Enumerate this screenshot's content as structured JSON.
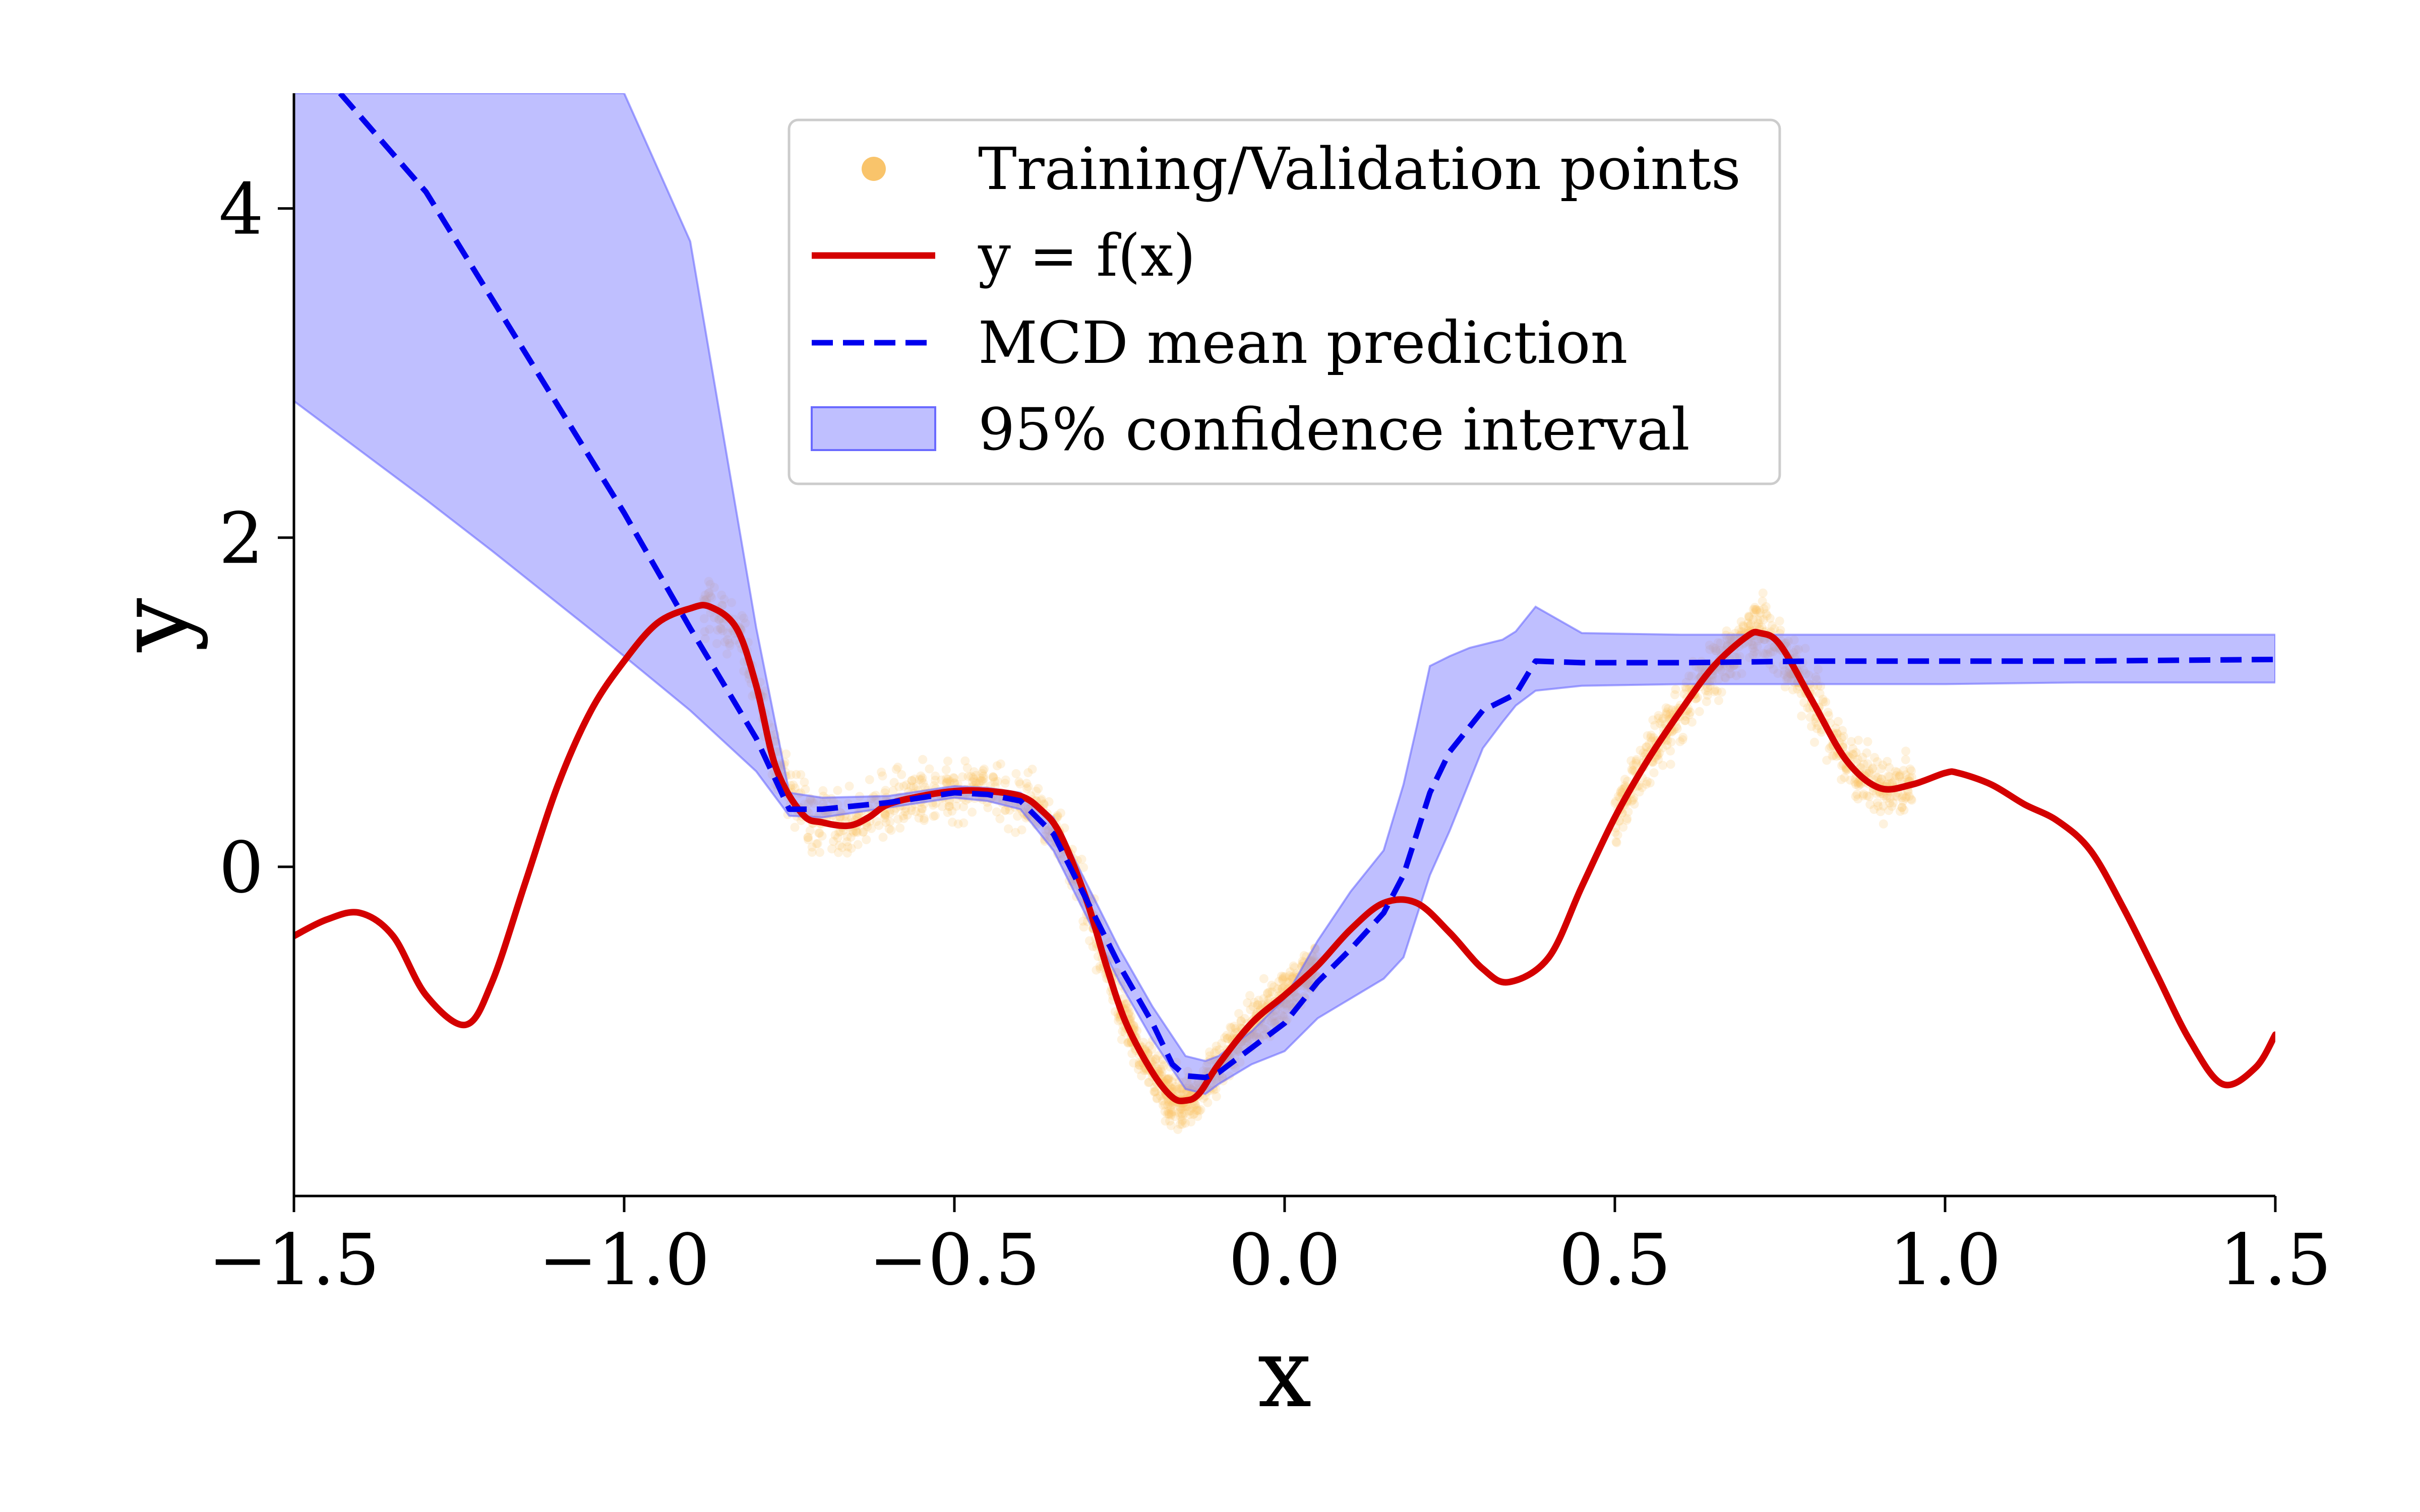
{
  "chart_data": {
    "type": "line",
    "title": "",
    "xlabel": "x",
    "ylabel": "y",
    "xlim": [
      -1.5,
      1.5
    ],
    "ylim": [
      -2.0,
      4.7
    ],
    "grid": false,
    "legend_placement": "top-center",
    "xticks": [
      -1.5,
      -1.0,
      -0.5,
      0.0,
      0.5,
      1.0,
      1.5
    ],
    "xtick_labels": [
      "−1.5",
      "−1.0",
      "−0.5",
      "0.0",
      "0.5",
      "1.0",
      "1.5"
    ],
    "yticks": [
      0,
      2,
      4
    ],
    "ytick_labels": [
      "0",
      "2",
      "4"
    ],
    "legend": [
      {
        "label": "Training/Validation points",
        "kind": "scatter",
        "color": "#F9C46B"
      },
      {
        "label": "y = f(x)",
        "kind": "line",
        "color": "#D40000"
      },
      {
        "label": "MCD mean prediction",
        "kind": "dashed-line",
        "color": "#0000EE"
      },
      {
        "label": "95% confidence interval",
        "kind": "band",
        "color": "#8080FF"
      }
    ],
    "series": [
      {
        "name": "y = f(x)",
        "color": "#D40000",
        "x": [
          -1.5,
          -1.45,
          -1.4,
          -1.35,
          -1.3,
          -1.24,
          -1.2,
          -1.15,
          -1.1,
          -1.05,
          -1.0,
          -0.95,
          -0.9,
          -0.87,
          -0.83,
          -0.8,
          -0.77,
          -0.73,
          -0.7,
          -0.66,
          -0.63,
          -0.6,
          -0.55,
          -0.5,
          -0.45,
          -0.4,
          -0.37,
          -0.34,
          -0.3,
          -0.27,
          -0.24,
          -0.2,
          -0.17,
          -0.15,
          -0.13,
          -0.1,
          -0.05,
          0.0,
          0.05,
          0.1,
          0.15,
          0.2,
          0.25,
          0.3,
          0.34,
          0.4,
          0.45,
          0.5,
          0.55,
          0.6,
          0.65,
          0.7,
          0.72,
          0.75,
          0.8,
          0.85,
          0.9,
          0.95,
          1.0,
          1.02,
          1.07,
          1.12,
          1.17,
          1.22,
          1.27,
          1.32,
          1.37,
          1.42,
          1.47,
          1.5
        ],
        "y": [
          -0.42,
          -0.32,
          -0.28,
          -0.42,
          -0.78,
          -0.96,
          -0.7,
          -0.1,
          0.5,
          0.95,
          1.25,
          1.48,
          1.57,
          1.58,
          1.45,
          1.1,
          0.6,
          0.32,
          0.27,
          0.25,
          0.3,
          0.38,
          0.43,
          0.46,
          0.46,
          0.43,
          0.35,
          0.2,
          -0.2,
          -0.6,
          -0.95,
          -1.25,
          -1.4,
          -1.42,
          -1.38,
          -1.2,
          -0.95,
          -0.78,
          -0.6,
          -0.38,
          -0.22,
          -0.22,
          -0.4,
          -0.62,
          -0.7,
          -0.55,
          -0.12,
          0.3,
          0.65,
          0.95,
          1.22,
          1.4,
          1.42,
          1.35,
          1.0,
          0.65,
          0.48,
          0.5,
          0.57,
          0.57,
          0.5,
          0.38,
          0.28,
          0.1,
          -0.25,
          -0.65,
          -1.05,
          -1.32,
          -1.22,
          -1.02
        ]
      },
      {
        "name": "MCD mean prediction",
        "color": "#0000EE",
        "x": [
          -1.43,
          -1.3,
          -1.2,
          -1.1,
          -1.0,
          -0.9,
          -0.8,
          -0.75,
          -0.7,
          -0.6,
          -0.5,
          -0.45,
          -0.4,
          -0.35,
          -0.3,
          -0.25,
          -0.2,
          -0.17,
          -0.15,
          -0.12,
          -0.1,
          -0.05,
          0.0,
          0.05,
          0.1,
          0.15,
          0.18,
          0.2,
          0.22,
          0.25,
          0.3,
          0.35,
          0.38,
          0.45,
          0.6,
          0.8,
          1.0,
          1.2,
          1.5
        ],
        "y": [
          4.7,
          4.1,
          3.45,
          2.8,
          2.15,
          1.45,
          0.78,
          0.35,
          0.35,
          0.39,
          0.45,
          0.44,
          0.4,
          0.2,
          -0.2,
          -0.6,
          -0.95,
          -1.2,
          -1.27,
          -1.28,
          -1.25,
          -1.1,
          -0.95,
          -0.7,
          -0.5,
          -0.28,
          -0.05,
          0.2,
          0.45,
          0.7,
          0.95,
          1.05,
          1.25,
          1.24,
          1.24,
          1.25,
          1.25,
          1.25,
          1.26
        ]
      }
    ],
    "confidence_interval": {
      "name": "95% confidence interval",
      "color": "#8080FF",
      "x": [
        -1.5,
        -1.4,
        -1.3,
        -1.2,
        -1.1,
        -1.0,
        -0.9,
        -0.8,
        -0.75,
        -0.7,
        -0.6,
        -0.5,
        -0.45,
        -0.4,
        -0.35,
        -0.3,
        -0.25,
        -0.2,
        -0.15,
        -0.12,
        -0.1,
        -0.05,
        0.0,
        0.05,
        0.1,
        0.15,
        0.18,
        0.2,
        0.22,
        0.25,
        0.28,
        0.3,
        0.33,
        0.35,
        0.38,
        0.45,
        0.6,
        0.8,
        1.0,
        1.2,
        1.5
      ],
      "lower": [
        2.83,
        2.53,
        2.23,
        1.92,
        1.6,
        1.28,
        0.95,
        0.58,
        0.31,
        0.3,
        0.36,
        0.42,
        0.4,
        0.35,
        0.1,
        -0.3,
        -0.7,
        -1.05,
        -1.35,
        -1.38,
        -1.32,
        -1.2,
        -1.12,
        -0.92,
        -0.8,
        -0.68,
        -0.55,
        -0.3,
        -0.05,
        0.22,
        0.52,
        0.72,
        0.88,
        0.98,
        1.07,
        1.1,
        1.11,
        1.11,
        1.11,
        1.12,
        1.12
      ],
      "upper": [
        4.7,
        4.7,
        4.7,
        4.7,
        4.7,
        4.7,
        3.8,
        1.45,
        0.45,
        0.42,
        0.43,
        0.49,
        0.48,
        0.45,
        0.3,
        -0.1,
        -0.5,
        -0.85,
        -1.15,
        -1.18,
        -1.15,
        -1.0,
        -0.8,
        -0.45,
        -0.15,
        0.1,
        0.5,
        0.85,
        1.22,
        1.28,
        1.33,
        1.35,
        1.38,
        1.43,
        1.58,
        1.42,
        1.41,
        1.41,
        1.41,
        1.41,
        1.41
      ]
    },
    "scatter_band": {
      "name": "Training/Validation points",
      "color": "#F9C46B",
      "segments": [
        {
          "x_from": -0.88,
          "x_to": -0.25,
          "spread": 0.18
        },
        {
          "x_from": -0.25,
          "x_to": 0.05,
          "spread": 0.15
        },
        {
          "x_from": 0.5,
          "x_to": 0.95,
          "spread": 0.18
        }
      ]
    }
  }
}
